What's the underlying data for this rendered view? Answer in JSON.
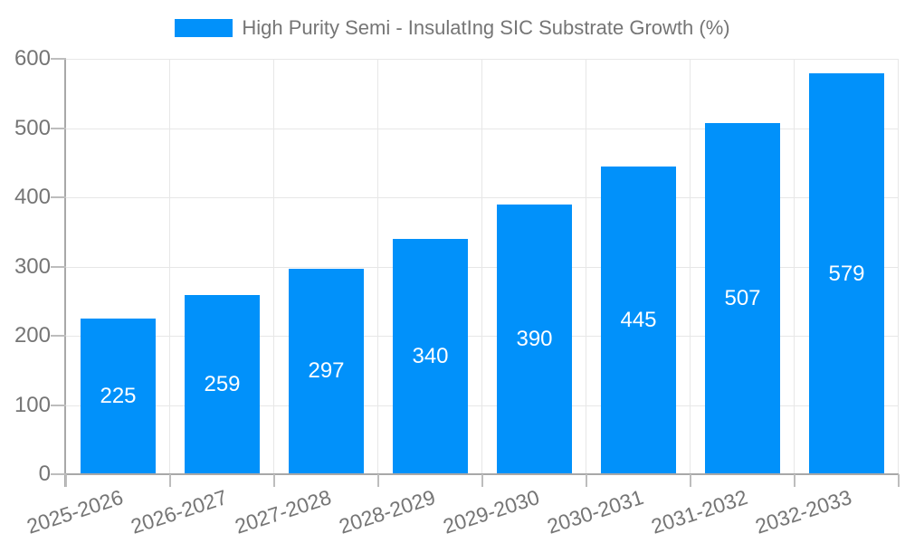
{
  "legend": {
    "label": "High Purity Semi - InsulatIng SIC Substrate Growth (%)"
  },
  "chart_data": {
    "type": "bar",
    "title": "High Purity Semi - InsulatIng SIC Substrate Growth (%)",
    "categories": [
      "2025-2026",
      "2026-2027",
      "2027-2028",
      "2028-2029",
      "2029-2030",
      "2030-2031",
      "2031-2032",
      "2032-2033"
    ],
    "values": [
      225,
      259,
      297,
      340,
      390,
      445,
      507,
      579
    ],
    "xlabel": "",
    "ylabel": "",
    "ylim": [
      0,
      600
    ],
    "yticks": [
      0,
      100,
      200,
      300,
      400,
      500,
      600
    ],
    "grid": true,
    "legend_position": "top",
    "value_labels": "centered-inside-bars"
  },
  "colors": {
    "bar": "#0191fa",
    "grid": "#e7e7e7",
    "axis": "#a8a8a8",
    "tick": "#bdbdbd",
    "text": "#757575",
    "value_label": "#ffffff",
    "background": "#ffffff"
  }
}
